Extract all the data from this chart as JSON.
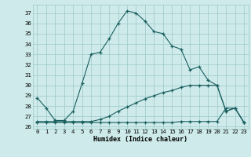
{
  "xlabel": "Humidex (Indice chaleur)",
  "bg_color": "#ceeaea",
  "grid_color": "#9dc8c8",
  "line_color": "#1a5f5f",
  "xlim": [
    -0.5,
    23.5
  ],
  "ylim": [
    25.8,
    37.8
  ],
  "yticks": [
    26,
    27,
    28,
    29,
    30,
    31,
    32,
    33,
    34,
    35,
    36,
    37
  ],
  "xticks": [
    0,
    1,
    2,
    3,
    4,
    5,
    6,
    7,
    8,
    9,
    10,
    11,
    12,
    13,
    14,
    15,
    16,
    17,
    18,
    19,
    20,
    21,
    22,
    23
  ],
  "xtick_labels": [
    "0",
    "1",
    "2",
    "3",
    "4",
    "5",
    "6",
    "7",
    "8",
    "9",
    "10",
    "11",
    "12",
    "13",
    "14",
    "15",
    "16",
    "17",
    "18",
    "19",
    "20",
    "21",
    "22",
    "23"
  ],
  "series": [
    {
      "x": [
        0,
        1,
        2,
        3,
        4,
        5,
        6,
        7,
        8,
        9,
        10,
        11,
        12,
        13,
        14,
        15,
        16,
        17,
        18,
        19,
        20,
        21,
        22,
        23
      ],
      "y": [
        28.8,
        27.8,
        26.6,
        26.6,
        27.5,
        30.2,
        33.0,
        33.2,
        34.5,
        36.0,
        37.2,
        37.0,
        36.2,
        35.2,
        35.0,
        33.8,
        33.5,
        31.5,
        31.8,
        30.5,
        30.0,
        27.5,
        27.8,
        26.4
      ]
    },
    {
      "x": [
        0,
        1,
        2,
        3,
        4,
        5,
        6,
        7,
        8,
        9,
        10,
        11,
        12,
        13,
        14,
        15,
        16,
        17,
        18,
        19,
        20,
        21,
        22,
        23
      ],
      "y": [
        26.5,
        26.5,
        26.5,
        26.5,
        26.5,
        26.5,
        26.5,
        26.7,
        27.0,
        27.5,
        27.9,
        28.3,
        28.7,
        29.0,
        29.3,
        29.5,
        29.8,
        30.0,
        30.0,
        30.0,
        30.0,
        27.5,
        27.8,
        26.4
      ]
    },
    {
      "x": [
        0,
        1,
        2,
        3,
        4,
        5,
        6,
        7,
        8,
        9,
        10,
        11,
        12,
        13,
        14,
        15,
        16,
        17,
        18,
        19,
        20,
        21,
        22,
        23
      ],
      "y": [
        26.4,
        26.4,
        26.4,
        26.4,
        26.4,
        26.4,
        26.4,
        26.4,
        26.4,
        26.4,
        26.4,
        26.4,
        26.4,
        26.4,
        26.4,
        26.4,
        26.5,
        26.5,
        26.5,
        26.5,
        26.5,
        27.8,
        27.8,
        26.4
      ]
    }
  ]
}
